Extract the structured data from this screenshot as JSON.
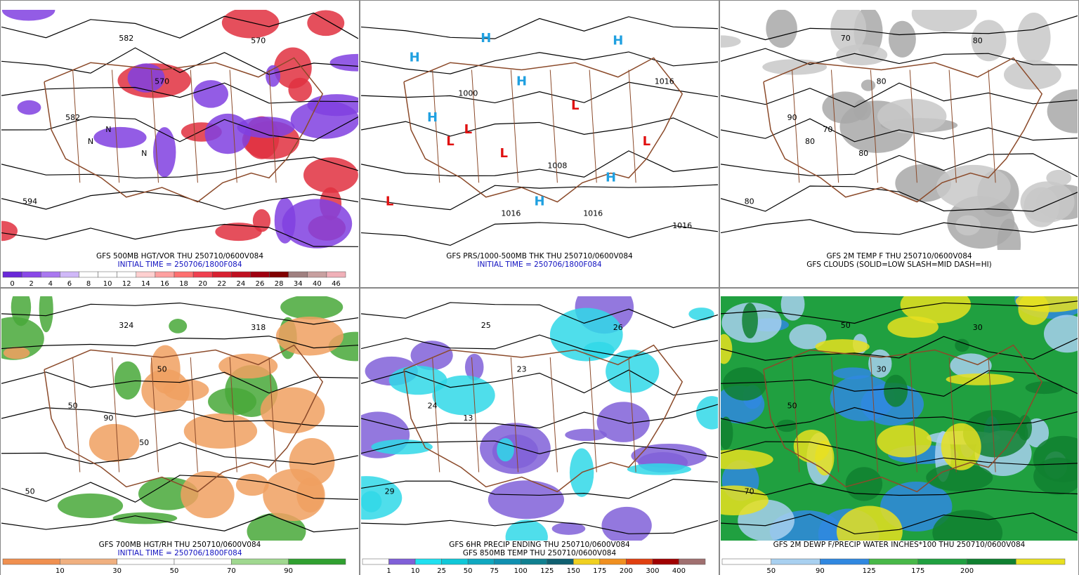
{
  "panels": [
    {
      "caption": [
        {
          "text": "GFS 500MB HGT/VOR THU 250710/0600V084",
          "color": "#000000"
        },
        {
          "text": "INITIAL TIME = 250706/1800F084",
          "color": "#1010c0"
        }
      ],
      "background": "#ffffff",
      "blobs": [
        "#e03040",
        "#8040e0"
      ],
      "colorbar": {
        "colors": [
          "#6a28d8",
          "#8a48e8",
          "#aa78f0",
          "#d0b8f8",
          "#ffffff",
          "#ffffff",
          "#ffffff",
          "#ffd0d0",
          "#ffa0a0",
          "#ff7070",
          "#f04050",
          "#d82030",
          "#c01020",
          "#a00010",
          "#800000",
          "#a08080",
          "#c8a0a0",
          "#f0b0b8"
        ],
        "labels": [
          "0",
          "2",
          "4",
          "6",
          "8",
          "10",
          "12",
          "14",
          "16",
          "18",
          "20",
          "22",
          "24",
          "26",
          "28",
          "34",
          "40",
          "46"
        ]
      },
      "map_labels": [
        "582",
        "570",
        "570",
        "582",
        "594",
        "N",
        "N",
        "N"
      ]
    },
    {
      "caption": [
        {
          "text": "GFS PRS/1000-500MB THK THU 250710/0600V084",
          "color": "#000000"
        },
        {
          "text": "INITIAL TIME = 250706/1800F084",
          "color": "#1010c0"
        }
      ],
      "background": "#ffffff",
      "blobs": [],
      "map_labels": [
        "H",
        "H",
        "H",
        "H",
        "L",
        "L",
        "L",
        "L",
        "L",
        "L",
        "H",
        "H",
        "H",
        "1016",
        "1008",
        "1016",
        "1016",
        "1000",
        "1016"
      ]
    },
    {
      "caption": [
        {
          "text": "GFS 2M TEMP F THU 250710/0600V084",
          "color": "#000000"
        },
        {
          "text": "GFS CLOUDS (SOLID=LOW SLASH=MID DASH=HI)",
          "color": "#000000"
        }
      ],
      "background": "#ffffff",
      "blobs": [
        "#a8a8a8",
        "#c8c8c8"
      ],
      "map_labels": [
        "70",
        "80",
        "80",
        "90",
        "80",
        "70",
        "80",
        "80"
      ]
    },
    {
      "caption": [
        {
          "text": "GFS 700MB HGT/RH THU 250710/0600V084",
          "color": "#000000"
        },
        {
          "text": "INITIAL TIME = 250706/1800F084",
          "color": "#1010c0"
        }
      ],
      "background": "#ffffff",
      "blobs": [
        "#48a838",
        "#f0a060"
      ],
      "colorbar": {
        "colors": [
          "#f09050",
          "#f0b080",
          "#ffffff",
          "#ffffff",
          "#a0d890",
          "#30a030"
        ],
        "labels": [
          "10",
          "30",
          "50",
          "70",
          "90"
        ]
      },
      "map_labels": [
        "324",
        "318",
        "50",
        "50",
        "50",
        "90",
        "50"
      ]
    },
    {
      "caption": [
        {
          "text": "GFS 6HR PRECIP ENDING THU 250710/0600V084",
          "color": "#000000"
        },
        {
          "text": "GFS 850MB TEMP THU 250710/0600V084",
          "color": "#000000"
        }
      ],
      "background": "#ffffff",
      "blobs": [
        "#8060d8",
        "#30d8e8"
      ],
      "colorbar": {
        "colors": [
          "#ffffff",
          "#8060d8",
          "#20e0f0",
          "#10c8d8",
          "#10a8c0",
          "#1090b0",
          "#108090",
          "#106070",
          "#f0d020",
          "#f09020",
          "#e04010",
          "#a00000",
          "#a07070"
        ],
        "labels": [
          "1",
          "10",
          "25",
          "50",
          "75",
          "100",
          "125",
          "150",
          "175",
          "200",
          "300",
          "400"
        ]
      },
      "map_labels": [
        "25",
        "26",
        "23",
        "24",
        "29",
        "13"
      ]
    },
    {
      "caption": [
        {
          "text": "GFS 2M DEWP F/PRECIP WATER INCHES*100 THU 250710/0600V084",
          "color": "#000000"
        }
      ],
      "background": "#20a040",
      "blobs": [
        "#3088e0",
        "#a8d0f0",
        "#108030",
        "#e8e020"
      ],
      "colorbar": {
        "colors": [
          "#ffffff",
          "#a8d0f0",
          "#3088e0",
          "#48b848",
          "#20a040",
          "#108030",
          "#e8e020"
        ],
        "labels": [
          "50",
          "90",
          "125",
          "175",
          "200"
        ]
      },
      "map_labels": [
        "50",
        "30",
        "30",
        "50",
        "70"
      ]
    }
  ]
}
